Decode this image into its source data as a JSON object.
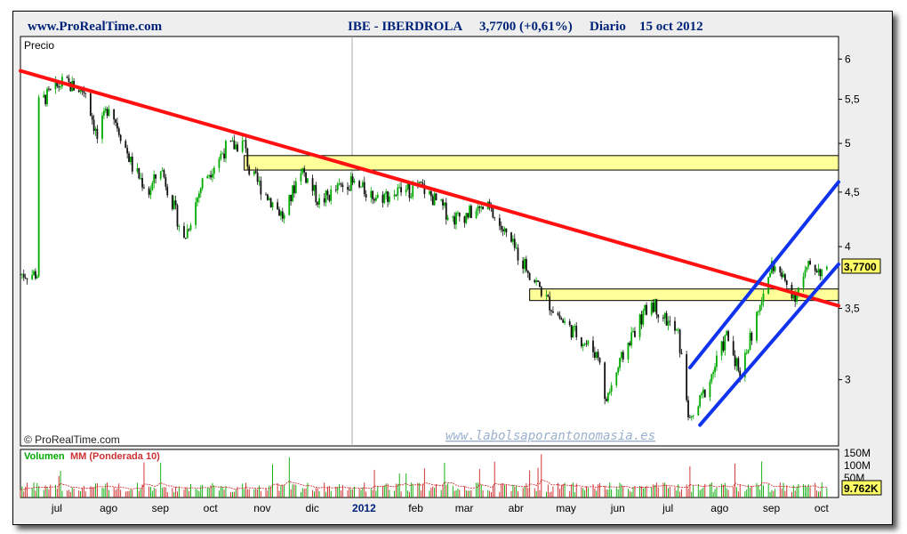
{
  "header": {
    "site": "www.ProRealTime.com",
    "ticker": "IBE - IBERDROLA",
    "price_change": "3,7700 (+0,61%)",
    "period": "Diario",
    "date": "15 oct 2012"
  },
  "price_panel": {
    "label": "Precio",
    "copyright": "© ProRealTime.com",
    "watermark": "www.labolsaporantonomasia.es",
    "last_price_tag": "3,7700"
  },
  "volume_panel": {
    "label_vol": "Volumen",
    "label_mm": "MM (Ponderada 10)",
    "last_volume_tag": "9.762K",
    "y_labels": [
      "150M",
      "100M",
      "50M"
    ]
  },
  "colors": {
    "up": "#00aa00",
    "down": "#111111",
    "trendline": "#ff1111",
    "channel": "#1133ee",
    "zone_fill": "#ffff99",
    "volume": "#cc2222",
    "header_text": "#00237a"
  },
  "chart_data": {
    "type": "candlestick",
    "x_tick_labels": [
      "jul",
      "ago",
      "sep",
      "oct",
      "nov",
      "dic",
      "2012",
      "feb",
      "mar",
      "abr",
      "may",
      "jun",
      "jul",
      "ago",
      "sep",
      "oct"
    ],
    "y_tick_labels": [
      "6",
      "5,5",
      "5",
      "4,5",
      "4",
      "3,5",
      "3"
    ],
    "y_scale": "log",
    "ylim": [
      2.6,
      6.3
    ],
    "price_path": [
      {
        "date": "2011-07-01",
        "close": 5.45
      },
      {
        "date": "2011-07-15",
        "close": 5.7
      },
      {
        "date": "2011-07-29",
        "close": 5.6
      },
      {
        "date": "2011-08-05",
        "close": 5.05
      },
      {
        "date": "2011-08-12",
        "close": 5.45
      },
      {
        "date": "2011-08-26",
        "close": 4.75
      },
      {
        "date": "2011-09-05",
        "close": 4.5
      },
      {
        "date": "2011-09-12",
        "close": 4.75
      },
      {
        "date": "2011-09-26",
        "close": 4.05
      },
      {
        "date": "2011-10-07",
        "close": 4.6
      },
      {
        "date": "2011-10-21",
        "close": 4.95
      },
      {
        "date": "2011-11-01",
        "close": 5.0
      },
      {
        "date": "2011-11-04",
        "close": 4.7
      },
      {
        "date": "2011-11-25",
        "close": 4.25
      },
      {
        "date": "2011-12-05",
        "close": 4.75
      },
      {
        "date": "2011-12-16",
        "close": 4.4
      },
      {
        "date": "2012-01-02",
        "close": 4.6
      },
      {
        "date": "2012-01-20",
        "close": 4.45
      },
      {
        "date": "2012-02-15",
        "close": 4.55
      },
      {
        "date": "2012-03-05",
        "close": 4.25
      },
      {
        "date": "2012-03-26",
        "close": 4.35
      },
      {
        "date": "2012-04-10",
        "close": 4.0
      },
      {
        "date": "2012-05-01",
        "close": 3.55
      },
      {
        "date": "2012-05-10",
        "close": 3.4
      },
      {
        "date": "2012-06-01",
        "close": 3.15
      },
      {
        "date": "2012-06-04",
        "close": 2.85
      },
      {
        "date": "2012-06-20",
        "close": 3.3
      },
      {
        "date": "2012-07-02",
        "close": 3.55
      },
      {
        "date": "2012-07-18",
        "close": 3.3
      },
      {
        "date": "2012-07-25",
        "close": 2.72
      },
      {
        "date": "2012-08-06",
        "close": 3.0
      },
      {
        "date": "2012-08-16",
        "close": 3.3
      },
      {
        "date": "2012-08-24",
        "close": 3.05
      },
      {
        "date": "2012-09-05",
        "close": 3.5
      },
      {
        "date": "2012-09-12",
        "close": 3.85
      },
      {
        "date": "2012-09-26",
        "close": 3.6
      },
      {
        "date": "2012-10-05",
        "close": 3.85
      },
      {
        "date": "2012-10-15",
        "close": 3.77
      }
    ],
    "lines": [
      {
        "name": "trendline",
        "from": {
          "date": "2011-06-20",
          "value": 5.85
        },
        "to": {
          "date": "2012-10-22",
          "value": 3.52
        }
      },
      {
        "name": "channel-lower",
        "from": {
          "date": "2012-07-31",
          "value": 2.72
        },
        "to": {
          "date": "2012-10-22",
          "value": 3.85
        }
      },
      {
        "name": "channel-upper",
        "from": {
          "date": "2012-07-25",
          "value": 3.08
        },
        "to": {
          "date": "2012-10-22",
          "value": 4.6
        }
      }
    ],
    "zones": [
      {
        "from_date": "2011-11-01",
        "to_date": "2012-10-22",
        "low": 4.72,
        "high": 4.87
      },
      {
        "from_date": "2012-04-20",
        "to_date": "2012-10-22",
        "low": 3.56,
        "high": 3.65
      }
    ],
    "last_close": 3.77
  }
}
